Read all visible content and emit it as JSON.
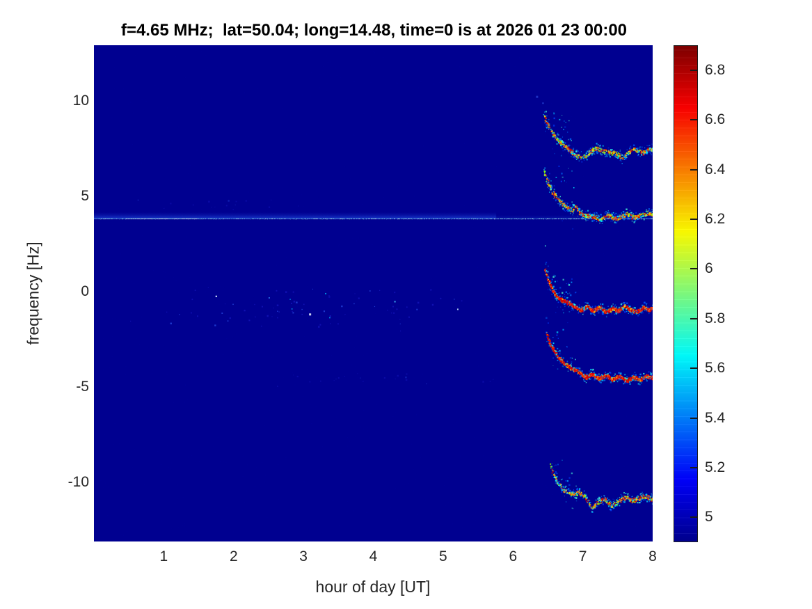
{
  "figure": {
    "title": "f=4.65 MHz;  lat=50.04; long=14.48, time=0 is at 2026 01 23 00:00",
    "xlabel": "hour of day [UT]",
    "ylabel": "frequency [Hz]"
  },
  "chart_data": {
    "type": "heatmap",
    "subtype": "doppler-spectrogram",
    "title": "f=4.65 MHz;  lat=50.04; long=14.48, time=0 is at 2026 01 23 00:00",
    "xlabel": "hour of day [UT]",
    "ylabel": "frequency [Hz]",
    "xlim": [
      0,
      8
    ],
    "ylim": [
      -13.1,
      12.9
    ],
    "xticks": [
      1,
      2,
      3,
      4,
      5,
      6,
      7,
      8
    ],
    "yticks": [
      10,
      5,
      0,
      -5,
      -10
    ],
    "xtick_labels": [
      "1",
      "2",
      "3",
      "4",
      "5",
      "6",
      "7",
      "8"
    ],
    "ytick_labels": [
      "10",
      "5",
      "0",
      "-5",
      "-10"
    ],
    "grid": false,
    "legend": false,
    "colormap": "jet",
    "background_color": "#000090",
    "background_value": 4.9,
    "colorbar": {
      "position": "right",
      "range": [
        4.9,
        6.9
      ],
      "tick_values": [
        6.8,
        6.6,
        6.4,
        6.2,
        6.0,
        5.8,
        5.6,
        5.4,
        5.2,
        5.0
      ],
      "tick_labels": [
        "6.8",
        "6.6",
        "6.4",
        "6.2",
        "6",
        "5.8",
        "5.6",
        "5.4",
        "5.2",
        "5"
      ]
    },
    "carrier_line": {
      "description": "thin horizontal cyan-blue line across full time span",
      "freq": 3.82,
      "extent_hours": [
        0,
        8
      ],
      "bright_segment_hours": [
        0.45,
        1.5
      ]
    },
    "traces": [
      {
        "name": "trace-upper-8Hz",
        "strength": "medium",
        "tail_up": 60,
        "points": [
          [
            6.44,
            9.2
          ],
          [
            6.5,
            8.7
          ],
          [
            6.58,
            8.2
          ],
          [
            6.68,
            7.8
          ],
          [
            6.78,
            7.5
          ],
          [
            6.9,
            7.15
          ],
          [
            7.0,
            7.05
          ],
          [
            7.08,
            7.3
          ],
          [
            7.18,
            7.55
          ],
          [
            7.28,
            7.4
          ],
          [
            7.38,
            7.3
          ],
          [
            7.5,
            7.25
          ],
          [
            7.56,
            6.95
          ],
          [
            7.62,
            7.2
          ],
          [
            7.7,
            7.5
          ],
          [
            7.78,
            7.4
          ],
          [
            7.86,
            7.3
          ],
          [
            7.94,
            7.5
          ],
          [
            8.0,
            7.45
          ]
        ]
      },
      {
        "name": "trace-upper-4Hz",
        "strength": "medium",
        "tail_up": 55,
        "points": [
          [
            6.44,
            6.3
          ],
          [
            6.48,
            5.9
          ],
          [
            6.52,
            5.5
          ],
          [
            6.58,
            5.1
          ],
          [
            6.66,
            4.75
          ],
          [
            6.76,
            4.45
          ],
          [
            6.84,
            4.25
          ],
          [
            6.9,
            4.45
          ],
          [
            6.96,
            4.1
          ],
          [
            7.06,
            4.0
          ],
          [
            7.16,
            3.95
          ],
          [
            7.26,
            3.8
          ],
          [
            7.34,
            4.05
          ],
          [
            7.44,
            3.85
          ],
          [
            7.52,
            3.9
          ],
          [
            7.62,
            4.1
          ],
          [
            7.72,
            3.9
          ],
          [
            7.82,
            4.0
          ],
          [
            7.92,
            4.15
          ],
          [
            8.0,
            4.05
          ]
        ]
      },
      {
        "name": "trace-center-0Hz",
        "strength": "strong",
        "tail_up": 55,
        "points": [
          [
            6.45,
            1.2
          ],
          [
            6.5,
            0.6
          ],
          [
            6.56,
            0.1
          ],
          [
            6.62,
            -0.25
          ],
          [
            6.7,
            -0.45
          ],
          [
            6.8,
            -0.6
          ],
          [
            6.88,
            -0.8
          ],
          [
            6.98,
            -0.95
          ],
          [
            7.06,
            -0.75
          ],
          [
            7.14,
            -1.0
          ],
          [
            7.24,
            -0.8
          ],
          [
            7.32,
            -1.05
          ],
          [
            7.42,
            -0.85
          ],
          [
            7.5,
            -1.0
          ],
          [
            7.58,
            -0.75
          ],
          [
            7.68,
            -0.95
          ],
          [
            7.78,
            -1.05
          ],
          [
            7.86,
            -0.8
          ],
          [
            7.94,
            -0.95
          ],
          [
            8.0,
            -0.8
          ]
        ]
      },
      {
        "name": "trace-lower-minus4Hz",
        "strength": "strong",
        "tail_up": 50,
        "points": [
          [
            6.48,
            -2.2
          ],
          [
            6.52,
            -2.7
          ],
          [
            6.58,
            -3.1
          ],
          [
            6.66,
            -3.5
          ],
          [
            6.74,
            -3.8
          ],
          [
            6.84,
            -4.0
          ],
          [
            6.94,
            -4.2
          ],
          [
            7.04,
            -4.5
          ],
          [
            7.12,
            -4.3
          ],
          [
            7.22,
            -4.55
          ],
          [
            7.32,
            -4.35
          ],
          [
            7.42,
            -4.6
          ],
          [
            7.52,
            -4.4
          ],
          [
            7.62,
            -4.65
          ],
          [
            7.72,
            -4.45
          ],
          [
            7.82,
            -4.6
          ],
          [
            7.9,
            -4.4
          ],
          [
            8.0,
            -4.5
          ]
        ]
      },
      {
        "name": "trace-lower-minus10Hz",
        "strength": "medium",
        "tail_up": 45,
        "points": [
          [
            6.53,
            -9.0
          ],
          [
            6.58,
            -9.6
          ],
          [
            6.64,
            -10.05
          ],
          [
            6.72,
            -10.4
          ],
          [
            6.8,
            -10.55
          ],
          [
            6.88,
            -10.6
          ],
          [
            6.94,
            -10.5
          ],
          [
            7.04,
            -10.8
          ],
          [
            7.12,
            -11.3
          ],
          [
            7.22,
            -11.0
          ],
          [
            7.3,
            -10.85
          ],
          [
            7.4,
            -11.2
          ],
          [
            7.5,
            -11.0
          ],
          [
            7.6,
            -10.75
          ],
          [
            7.7,
            -10.95
          ],
          [
            7.8,
            -10.8
          ],
          [
            7.9,
            -10.7
          ],
          [
            8.0,
            -10.9
          ]
        ]
      }
    ],
    "noise_regions": [
      {
        "hours": [
          0.3,
          6.35
        ],
        "freq": [
          -2.3,
          0.45
        ],
        "count": 80,
        "intensity": "faint"
      },
      {
        "hours": [
          1.8,
          5.8
        ],
        "freq": [
          -5.0,
          -4.2
        ],
        "count": 22,
        "intensity": "very-faint"
      },
      {
        "hours": [
          0.2,
          3.2
        ],
        "freq": [
          4.1,
          5.0
        ],
        "count": 16,
        "intensity": "very-faint"
      }
    ],
    "isolated_speckles": [
      {
        "h": 6.33,
        "f": 10.25,
        "color": "#2238cc",
        "size": 3
      },
      {
        "h": 6.42,
        "f": 9.9,
        "color": "#2a50e0",
        "size": 2
      },
      {
        "h": 3.08,
        "f": -1.15,
        "color": "#eef6ff",
        "size": 3
      },
      {
        "h": 5.2,
        "f": -0.9,
        "color": "#cfeeff",
        "size": 2
      },
      {
        "h": 4.3,
        "f": -0.5,
        "color": "#49c8ff",
        "size": 2
      },
      {
        "h": 2.5,
        "f": -0.3,
        "color": "#2a70e8",
        "size": 2
      }
    ]
  }
}
